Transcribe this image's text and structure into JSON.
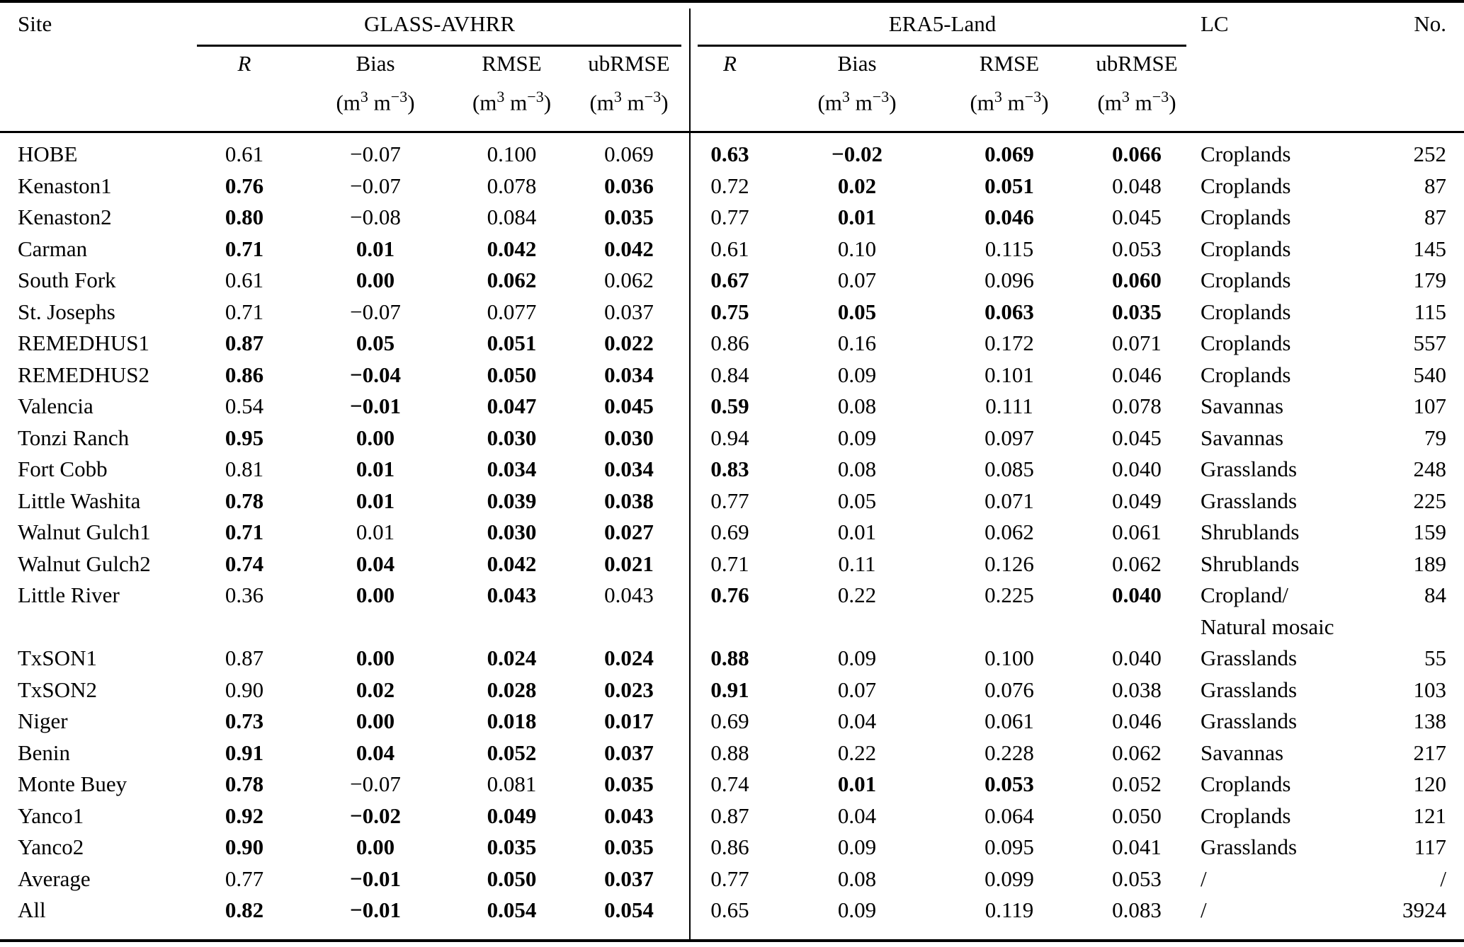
{
  "table": {
    "title_row": {
      "site": "Site",
      "glass": "GLASS-AVHRR",
      "era5": "ERA5-Land",
      "lc": "LC",
      "no": "No."
    },
    "subheaders": {
      "r": "R",
      "bias": "Bias",
      "rmse": "RMSE",
      "ubrmse": "ubRMSE",
      "unit": {
        "p1": "(m",
        "s1": "3",
        "p2": " m",
        "s2": "−3",
        "p3": ")"
      }
    },
    "rows": [
      {
        "site": "HOBE",
        "glass": [
          "0.61",
          "−0.07",
          "0.100",
          "0.069"
        ],
        "glass_bold": [
          false,
          false,
          false,
          false
        ],
        "era5": [
          "0.63",
          "−0.02",
          "0.069",
          "0.066"
        ],
        "era5_bold": [
          true,
          true,
          true,
          true
        ],
        "lc": [
          "Croplands"
        ],
        "no": "252"
      },
      {
        "site": "Kenaston1",
        "glass": [
          "0.76",
          "−0.07",
          "0.078",
          "0.036"
        ],
        "glass_bold": [
          true,
          false,
          false,
          true
        ],
        "era5": [
          "0.72",
          "0.02",
          "0.051",
          "0.048"
        ],
        "era5_bold": [
          false,
          true,
          true,
          false
        ],
        "lc": [
          "Croplands"
        ],
        "no": "87"
      },
      {
        "site": "Kenaston2",
        "glass": [
          "0.80",
          "−0.08",
          "0.084",
          "0.035"
        ],
        "glass_bold": [
          true,
          false,
          false,
          true
        ],
        "era5": [
          "0.77",
          "0.01",
          "0.046",
          "0.045"
        ],
        "era5_bold": [
          false,
          true,
          true,
          false
        ],
        "lc": [
          "Croplands"
        ],
        "no": "87"
      },
      {
        "site": "Carman",
        "glass": [
          "0.71",
          "0.01",
          "0.042",
          "0.042"
        ],
        "glass_bold": [
          true,
          true,
          true,
          true
        ],
        "era5": [
          "0.61",
          "0.10",
          "0.115",
          "0.053"
        ],
        "era5_bold": [
          false,
          false,
          false,
          false
        ],
        "lc": [
          "Croplands"
        ],
        "no": "145"
      },
      {
        "site": "South Fork",
        "glass": [
          "0.61",
          "0.00",
          "0.062",
          "0.062"
        ],
        "glass_bold": [
          false,
          true,
          true,
          false
        ],
        "era5": [
          "0.67",
          "0.07",
          "0.096",
          "0.060"
        ],
        "era5_bold": [
          true,
          false,
          false,
          true
        ],
        "lc": [
          "Croplands"
        ],
        "no": "179"
      },
      {
        "site": "St. Josephs",
        "glass": [
          "0.71",
          "−0.07",
          "0.077",
          "0.037"
        ],
        "glass_bold": [
          false,
          false,
          false,
          false
        ],
        "era5": [
          "0.75",
          "0.05",
          "0.063",
          "0.035"
        ],
        "era5_bold": [
          true,
          true,
          true,
          true
        ],
        "lc": [
          "Croplands"
        ],
        "no": "115"
      },
      {
        "site": "REMEDHUS1",
        "glass": [
          "0.87",
          "0.05",
          "0.051",
          "0.022"
        ],
        "glass_bold": [
          true,
          true,
          true,
          true
        ],
        "era5": [
          "0.86",
          "0.16",
          "0.172",
          "0.071"
        ],
        "era5_bold": [
          false,
          false,
          false,
          false
        ],
        "lc": [
          "Croplands"
        ],
        "no": "557"
      },
      {
        "site": "REMEDHUS2",
        "glass": [
          "0.86",
          "−0.04",
          "0.050",
          "0.034"
        ],
        "glass_bold": [
          true,
          true,
          true,
          true
        ],
        "era5": [
          "0.84",
          "0.09",
          "0.101",
          "0.046"
        ],
        "era5_bold": [
          false,
          false,
          false,
          false
        ],
        "lc": [
          "Croplands"
        ],
        "no": "540"
      },
      {
        "site": "Valencia",
        "glass": [
          "0.54",
          "−0.01",
          "0.047",
          "0.045"
        ],
        "glass_bold": [
          false,
          true,
          true,
          true
        ],
        "era5": [
          "0.59",
          "0.08",
          "0.111",
          "0.078"
        ],
        "era5_bold": [
          true,
          false,
          false,
          false
        ],
        "lc": [
          "Savannas"
        ],
        "no": "107"
      },
      {
        "site": "Tonzi Ranch",
        "glass": [
          "0.95",
          "0.00",
          "0.030",
          "0.030"
        ],
        "glass_bold": [
          true,
          true,
          true,
          true
        ],
        "era5": [
          "0.94",
          "0.09",
          "0.097",
          "0.045"
        ],
        "era5_bold": [
          false,
          false,
          false,
          false
        ],
        "lc": [
          "Savannas"
        ],
        "no": "79"
      },
      {
        "site": "Fort Cobb",
        "glass": [
          "0.81",
          "0.01",
          "0.034",
          "0.034"
        ],
        "glass_bold": [
          false,
          true,
          true,
          true
        ],
        "era5": [
          "0.83",
          "0.08",
          "0.085",
          "0.040"
        ],
        "era5_bold": [
          true,
          false,
          false,
          false
        ],
        "lc": [
          "Grasslands"
        ],
        "no": "248"
      },
      {
        "site": "Little Washita",
        "glass": [
          "0.78",
          "0.01",
          "0.039",
          "0.038"
        ],
        "glass_bold": [
          true,
          true,
          true,
          true
        ],
        "era5": [
          "0.77",
          "0.05",
          "0.071",
          "0.049"
        ],
        "era5_bold": [
          false,
          false,
          false,
          false
        ],
        "lc": [
          "Grasslands"
        ],
        "no": "225"
      },
      {
        "site": "Walnut Gulch1",
        "glass": [
          "0.71",
          "0.01",
          "0.030",
          "0.027"
        ],
        "glass_bold": [
          true,
          false,
          true,
          true
        ],
        "era5": [
          "0.69",
          "0.01",
          "0.062",
          "0.061"
        ],
        "era5_bold": [
          false,
          false,
          false,
          false
        ],
        "lc": [
          "Shrublands"
        ],
        "no": "159"
      },
      {
        "site": "Walnut Gulch2",
        "glass": [
          "0.74",
          "0.04",
          "0.042",
          "0.021"
        ],
        "glass_bold": [
          true,
          true,
          true,
          true
        ],
        "era5": [
          "0.71",
          "0.11",
          "0.126",
          "0.062"
        ],
        "era5_bold": [
          false,
          false,
          false,
          false
        ],
        "lc": [
          "Shrublands"
        ],
        "no": "189"
      },
      {
        "site": "Little River",
        "glass": [
          "0.36",
          "0.00",
          "0.043",
          "0.043"
        ],
        "glass_bold": [
          false,
          true,
          true,
          false
        ],
        "era5": [
          "0.76",
          "0.22",
          "0.225",
          "0.040"
        ],
        "era5_bold": [
          true,
          false,
          false,
          true
        ],
        "lc": [
          "Cropland/",
          "Natural mosaic"
        ],
        "no": "84"
      },
      {
        "site": "TxSON1",
        "glass": [
          "0.87",
          "0.00",
          "0.024",
          "0.024"
        ],
        "glass_bold": [
          false,
          true,
          true,
          true
        ],
        "era5": [
          "0.88",
          "0.09",
          "0.100",
          "0.040"
        ],
        "era5_bold": [
          true,
          false,
          false,
          false
        ],
        "lc": [
          "Grasslands"
        ],
        "no": "55"
      },
      {
        "site": "TxSON2",
        "glass": [
          "0.90",
          "0.02",
          "0.028",
          "0.023"
        ],
        "glass_bold": [
          false,
          true,
          true,
          true
        ],
        "era5": [
          "0.91",
          "0.07",
          "0.076",
          "0.038"
        ],
        "era5_bold": [
          true,
          false,
          false,
          false
        ],
        "lc": [
          "Grasslands"
        ],
        "no": "103"
      },
      {
        "site": "Niger",
        "glass": [
          "0.73",
          "0.00",
          "0.018",
          "0.017"
        ],
        "glass_bold": [
          true,
          true,
          true,
          true
        ],
        "era5": [
          "0.69",
          "0.04",
          "0.061",
          "0.046"
        ],
        "era5_bold": [
          false,
          false,
          false,
          false
        ],
        "lc": [
          "Grasslands"
        ],
        "no": "138"
      },
      {
        "site": "Benin",
        "glass": [
          "0.91",
          "0.04",
          "0.052",
          "0.037"
        ],
        "glass_bold": [
          true,
          true,
          true,
          true
        ],
        "era5": [
          "0.88",
          "0.22",
          "0.228",
          "0.062"
        ],
        "era5_bold": [
          false,
          false,
          false,
          false
        ],
        "lc": [
          "Savannas"
        ],
        "no": "217"
      },
      {
        "site": "Monte Buey",
        "glass": [
          "0.78",
          "−0.07",
          "0.081",
          "0.035"
        ],
        "glass_bold": [
          true,
          false,
          false,
          true
        ],
        "era5": [
          "0.74",
          "0.01",
          "0.053",
          "0.052"
        ],
        "era5_bold": [
          false,
          true,
          true,
          false
        ],
        "lc": [
          "Croplands"
        ],
        "no": "120"
      },
      {
        "site": "Yanco1",
        "glass": [
          "0.92",
          "−0.02",
          "0.049",
          "0.043"
        ],
        "glass_bold": [
          true,
          true,
          true,
          true
        ],
        "era5": [
          "0.87",
          "0.04",
          "0.064",
          "0.050"
        ],
        "era5_bold": [
          false,
          false,
          false,
          false
        ],
        "lc": [
          "Croplands"
        ],
        "no": "121"
      },
      {
        "site": "Yanco2",
        "glass": [
          "0.90",
          "0.00",
          "0.035",
          "0.035"
        ],
        "glass_bold": [
          true,
          true,
          true,
          true
        ],
        "era5": [
          "0.86",
          "0.09",
          "0.095",
          "0.041"
        ],
        "era5_bold": [
          false,
          false,
          false,
          false
        ],
        "lc": [
          "Grasslands"
        ],
        "no": "117"
      },
      {
        "site": "Average",
        "glass": [
          "0.77",
          "−0.01",
          "0.050",
          "0.037"
        ],
        "glass_bold": [
          false,
          true,
          true,
          true
        ],
        "era5": [
          "0.77",
          "0.08",
          "0.099",
          "0.053"
        ],
        "era5_bold": [
          false,
          false,
          false,
          false
        ],
        "lc": [
          "/"
        ],
        "no": "/"
      },
      {
        "site": "All",
        "glass": [
          "0.82",
          "−0.01",
          "0.054",
          "0.054"
        ],
        "glass_bold": [
          true,
          true,
          true,
          true
        ],
        "era5": [
          "0.65",
          "0.09",
          "0.119",
          "0.083"
        ],
        "era5_bold": [
          false,
          false,
          false,
          false
        ],
        "lc": [
          "/"
        ],
        "no": "3924"
      }
    ]
  }
}
